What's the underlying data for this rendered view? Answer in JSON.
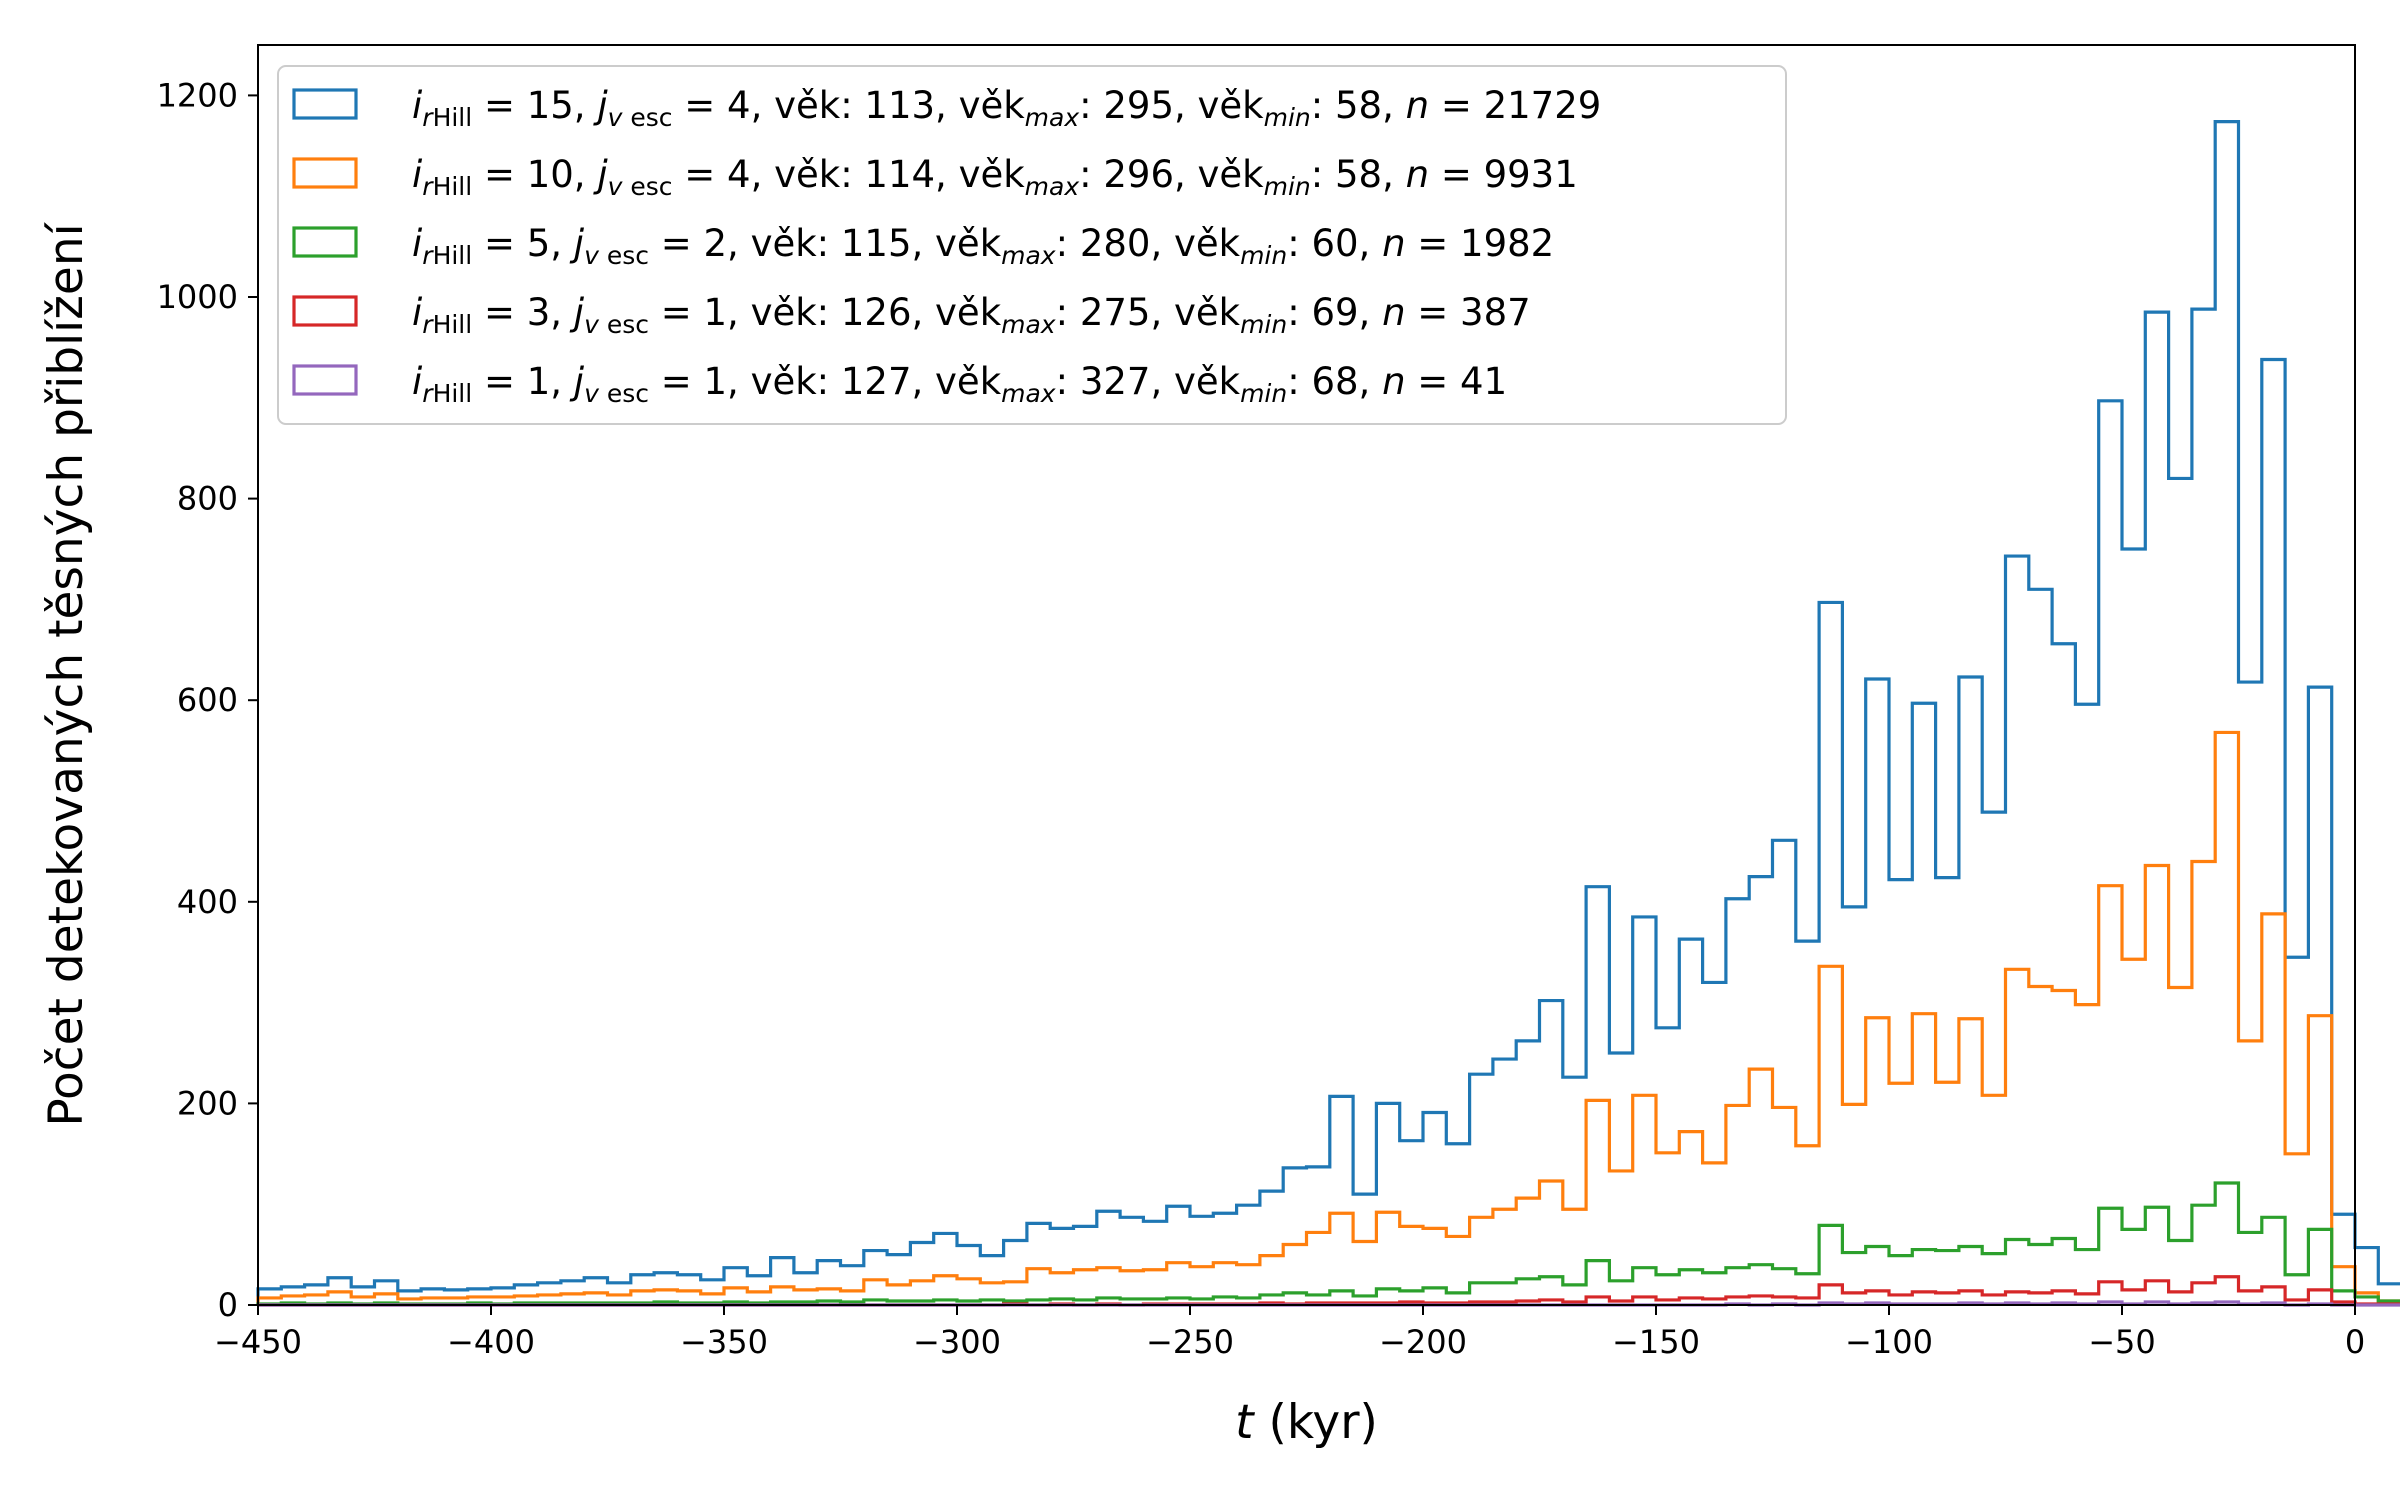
{
  "chart_data": {
    "type": "histogram-step",
    "xlabel": {
      "italic": "t",
      "rest": " (kyr)"
    },
    "ylabel": "Počet detekovaných těsných přiblížení",
    "xlim": [
      -450,
      0
    ],
    "ylim": [
      0,
      1250
    ],
    "xticks": [
      "−450",
      "−400",
      "−350",
      "−300",
      "−250",
      "−200",
      "−150",
      "−100",
      "−50",
      "0"
    ],
    "xtick_values": [
      -450,
      -400,
      -350,
      -300,
      -250,
      -200,
      -150,
      -100,
      -50,
      0
    ],
    "yticks": [
      "0",
      "200",
      "400",
      "600",
      "800",
      "1000",
      "1200"
    ],
    "ytick_values": [
      0,
      200,
      400,
      600,
      800,
      1000,
      1200
    ],
    "bin_start": -450,
    "bin_width": 5,
    "grid": false,
    "legend_position": "upper-left",
    "series": [
      {
        "color": "#1f77b4",
        "legend": {
          "i_val": "15",
          "j_val": "4",
          "vek": "113",
          "vek_max": "295",
          "vek_min": "58",
          "n": "21729"
        },
        "values": [
          16,
          18,
          20,
          27,
          18,
          24,
          14,
          16,
          15,
          16,
          17,
          20,
          22,
          24,
          27,
          22,
          30,
          32,
          30,
          25,
          37,
          29,
          47,
          32,
          44,
          39,
          54,
          50,
          62,
          71,
          59,
          49,
          64,
          81,
          76,
          78,
          93,
          87,
          83,
          98,
          88,
          91,
          99,
          113,
          136,
          137,
          207,
          110,
          200,
          163,
          191,
          160,
          229,
          244,
          262,
          302,
          226,
          415,
          250,
          385,
          275,
          363,
          320,
          403,
          425,
          461,
          361,
          697,
          395,
          621,
          422,
          597,
          424,
          623,
          489,
          743,
          710,
          656,
          596,
          897,
          750,
          985,
          820,
          988,
          1174,
          618,
          938,
          345,
          613,
          90,
          57,
          21,
          2,
          1,
          0,
          1,
          0,
          0,
          1,
          0
        ]
      },
      {
        "color": "#ff7f0e",
        "legend": {
          "i_val": "10",
          "j_val": "4",
          "vek": "114",
          "vek_max": "296",
          "vek_min": "58",
          "n": "9931"
        },
        "values": [
          7,
          9,
          10,
          13,
          8,
          11,
          6,
          7,
          7,
          8,
          8,
          9,
          10,
          11,
          12,
          10,
          14,
          15,
          14,
          11,
          17,
          13,
          18,
          15,
          16,
          14,
          25,
          20,
          24,
          29,
          26,
          22,
          23,
          36,
          32,
          35,
          37,
          34,
          35,
          42,
          38,
          42,
          40,
          49,
          60,
          72,
          91,
          63,
          92,
          78,
          76,
          68,
          87,
          95,
          106,
          123,
          95,
          203,
          133,
          208,
          151,
          172,
          141,
          198,
          234,
          196,
          158,
          336,
          199,
          285,
          220,
          289,
          221,
          284,
          208,
          333,
          316,
          312,
          298,
          416,
          343,
          436,
          315,
          440,
          568,
          262,
          388,
          150,
          287,
          38,
          12,
          4,
          0,
          0,
          0,
          0,
          0,
          0,
          0,
          0
        ]
      },
      {
        "color": "#2ca02c",
        "legend": {
          "i_val": "5",
          "j_val": "2",
          "vek": "115",
          "vek_max": "280",
          "vek_min": "60",
          "n": "1982"
        },
        "values": [
          1,
          2,
          1,
          2,
          1,
          2,
          1,
          1,
          1,
          2,
          1,
          2,
          2,
          2,
          2,
          2,
          2,
          3,
          2,
          2,
          3,
          2,
          3,
          3,
          4,
          3,
          5,
          4,
          4,
          5,
          4,
          5,
          4,
          5,
          6,
          5,
          7,
          6,
          6,
          7,
          6,
          8,
          7,
          10,
          12,
          10,
          14,
          9,
          16,
          14,
          17,
          12,
          22,
          22,
          26,
          28,
          20,
          44,
          24,
          37,
          30,
          35,
          32,
          37,
          40,
          36,
          31,
          79,
          52,
          58,
          49,
          55,
          54,
          58,
          51,
          65,
          60,
          66,
          55,
          96,
          75,
          97,
          64,
          99,
          121,
          72,
          87,
          30,
          75,
          14,
          8,
          4,
          0,
          0,
          0,
          0,
          0,
          0,
          0,
          0
        ]
      },
      {
        "color": "#d62728",
        "legend": {
          "i_val": "3",
          "j_val": "1",
          "vek": "126",
          "vek_max": "275",
          "vek_min": "69",
          "n": "387"
        },
        "values": [
          0,
          0,
          0,
          0,
          0,
          0,
          0,
          0,
          0,
          0,
          0,
          0,
          0,
          0,
          0,
          0,
          0,
          0,
          0,
          0,
          0,
          0,
          0,
          0,
          0,
          0,
          0,
          0,
          0,
          0,
          0,
          0,
          1,
          0,
          1,
          0,
          1,
          0,
          1,
          1,
          1,
          1,
          1,
          2,
          1,
          2,
          2,
          2,
          2,
          3,
          2,
          2,
          3,
          3,
          4,
          5,
          3,
          8,
          4,
          8,
          5,
          7,
          6,
          8,
          9,
          8,
          7,
          20,
          12,
          14,
          10,
          13,
          12,
          14,
          10,
          13,
          12,
          14,
          11,
          23,
          15,
          24,
          13,
          22,
          28,
          14,
          18,
          5,
          15,
          3,
          1,
          1,
          0,
          0,
          0,
          0,
          0,
          0,
          0,
          0
        ]
      },
      {
        "color": "#9467bd",
        "legend": {
          "i_val": "1",
          "j_val": "1",
          "vek": "127",
          "vek_max": "327",
          "vek_min": "68",
          "n": "41"
        },
        "values": [
          0,
          0,
          0,
          0,
          0,
          0,
          0,
          0,
          0,
          0,
          0,
          0,
          0,
          0,
          0,
          0,
          0,
          0,
          0,
          0,
          0,
          0,
          0,
          0,
          0,
          0,
          0,
          0,
          0,
          0,
          0,
          0,
          0,
          0,
          0,
          0,
          0,
          0,
          0,
          0,
          0,
          0,
          0,
          0,
          0,
          0,
          0,
          0,
          0,
          0,
          0,
          0,
          0,
          0,
          0,
          0,
          0,
          0,
          0,
          0,
          0,
          0,
          0,
          1,
          0,
          1,
          0,
          2,
          1,
          2,
          1,
          1,
          1,
          2,
          1,
          2,
          1,
          2,
          1,
          3,
          1,
          3,
          1,
          2,
          3,
          1,
          2,
          0,
          1,
          0,
          0,
          0,
          0,
          0,
          0,
          0,
          0,
          0,
          0,
          0
        ]
      }
    ],
    "legend_labels": {
      "i_sym": "i",
      "i_sub": "r Hill",
      "j_sym": "j",
      "j_sub": "v esc",
      "vek": "věk",
      "max_sub": "max",
      "min_sub": "min",
      "n_sym": "n"
    }
  }
}
